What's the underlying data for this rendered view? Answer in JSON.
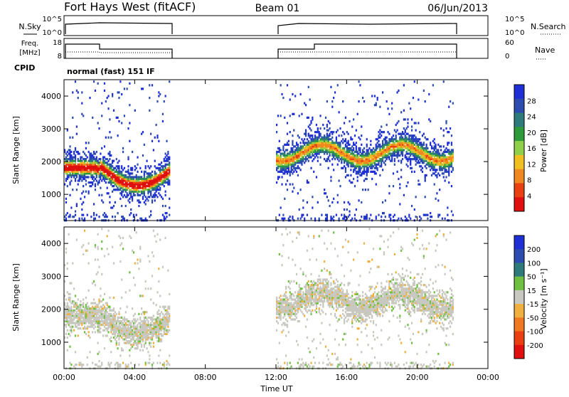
{
  "header": {
    "station": "Fort Hays West (fitACF)",
    "beam": "Beam 01",
    "date": "06/Jun/2013"
  },
  "noise_panel": {
    "left_label": "N.Sky",
    "left_ticks": [
      "10^5",
      "10^0"
    ],
    "right_ticks": [
      "10^5",
      "10^0"
    ],
    "right_label": "N.Search"
  },
  "freq_panel": {
    "left_label_1": "Freq.",
    "left_label_2": "[MHz]",
    "left_ticks": [
      "18",
      "8"
    ],
    "right_ticks": [
      "60",
      "0"
    ],
    "right_label": "Nave",
    "cpid_label": "CPID",
    "mode_label": "normal (fast) 151 IF"
  },
  "colors": {
    "power": [
      "#1f2fd6",
      "#2c4cb0",
      "#2f7a7a",
      "#2f9a3a",
      "#8fcf4a",
      "#f0c020",
      "#f08820",
      "#e84010",
      "#e01010"
    ],
    "velocity": [
      "#1f2fd6",
      "#2c4cb0",
      "#2f7a7a",
      "#6fc040",
      "#c8c8c0",
      "#f0b040",
      "#f07820",
      "#e84010",
      "#e01010"
    ]
  },
  "chart_data": [
    {
      "type": "heatmap",
      "ylabel": "Slant Range [km]",
      "colorbar_label": "Power [dB]",
      "colorbar_ticks": [
        "28",
        "24",
        "20",
        "16",
        "12",
        "8",
        "4"
      ],
      "y_ticks": [
        "4000",
        "3000",
        "2000",
        "1000"
      ],
      "ylim": [
        200,
        4500
      ],
      "x_range_hours": [
        0,
        24
      ],
      "data_blocks_hours": [
        [
          0,
          6
        ],
        [
          12,
          22
        ]
      ]
    },
    {
      "type": "heatmap",
      "xlabel": "Time UT",
      "ylabel": "Slant Range [km]",
      "colorbar_label": "Velocity [m s⁻¹]",
      "colorbar_ticks": [
        "200",
        "100",
        "50",
        "15",
        "-15",
        "-50",
        "-100",
        "-200"
      ],
      "y_ticks": [
        "4000",
        "3000",
        "2000",
        "1000"
      ],
      "x_ticks": [
        "00:00",
        "04:00",
        "08:00",
        "12:00",
        "16:00",
        "20:00",
        "00:00"
      ],
      "ylim": [
        200,
        4500
      ],
      "x_range_hours": [
        0,
        24
      ],
      "data_blocks_hours": [
        [
          0,
          6
        ],
        [
          12,
          22
        ]
      ]
    }
  ]
}
